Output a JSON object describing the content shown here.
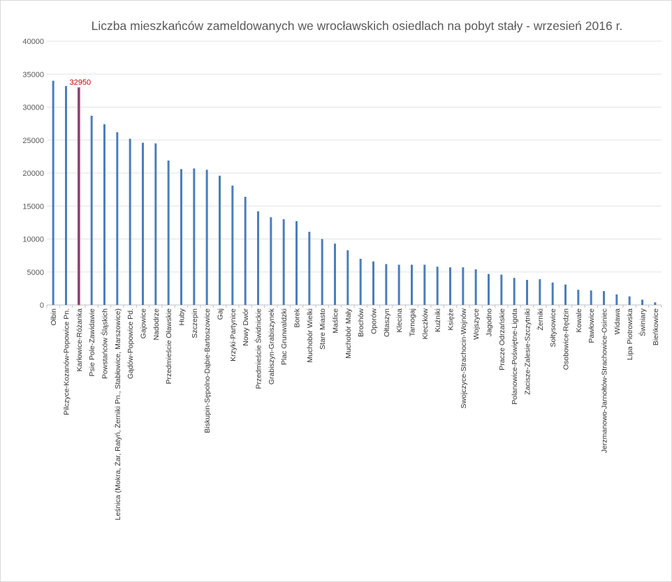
{
  "chart_data": {
    "type": "bar",
    "title": "Liczba mieszkańców zameldowanych we wrocławskich osiedlach na pobyt stały - wrzesień 2016 r.",
    "xlabel": "",
    "ylabel": "",
    "ylim": [
      0,
      40000
    ],
    "yticks": [
      "0",
      "5000",
      "10000",
      "15000",
      "20000",
      "25000",
      "30000",
      "35000",
      "40000"
    ],
    "grid": true,
    "bar_color": "#4a7ebb",
    "highlight_color": "#7b3f6e",
    "highlight_index": 2,
    "data_label": {
      "text": "32950",
      "color": "#c00000"
    },
    "categories": [
      "Ołbin",
      "Pilczyce-Kozanów-Popowice Pn.",
      "Karłowice-Różanka",
      "Psie Pole-Zawidawie",
      "Powstańców Śląskich",
      "Leśnica (Mokra, Żar, Ratyń, Żerniki Pn., Stabłowice, Marszowice)",
      "Gądów-Popowice Pd.",
      "Gajowice",
      "Nadodrze",
      "Przedmieście Oławskie",
      "Huby",
      "Szczepin",
      "Biskupin-Sępolno-Dąbie-Bartoszowice",
      "Gaj",
      "Krzyki-Partynice",
      "Nowy Dwór",
      "Przedmieście Świdnickie",
      "Grabiszyn-Grabiszynek",
      "Plac Grunwaldzki",
      "Borek",
      "Muchobór Wielki",
      "Stare Miasto",
      "Maślice",
      "Muchobór Mały",
      "Brochów",
      "Oporów",
      "Ołtaszyn",
      "Klecina",
      "Tarnogaj",
      "Kleczków",
      "Kuźniki",
      "Księże",
      "Swojczyce-Strachocin-Wojnów",
      "Wojszyce",
      "Jagodno",
      "Pracze Odrzańskie",
      "Polanowice-Poświętne-Ligota",
      "Zacisze-Zalesie-Szczytniki",
      "Żerniki",
      "Sołtysowice",
      "Osobowice-Rędzin",
      "Kowale",
      "Pawłowice",
      "Jerzmanowo-Jarnołtów-Strachowice-Osiniec",
      "Widawa",
      "Lipa Piotrowska",
      "Świniary",
      "Bieńkowice"
    ],
    "values": [
      34000,
      33200,
      32950,
      28700,
      27400,
      26200,
      25200,
      24600,
      24500,
      21900,
      20600,
      20700,
      20500,
      19600,
      18100,
      16400,
      14200,
      13300,
      13000,
      12700,
      11100,
      10000,
      9300,
      8300,
      7000,
      6600,
      6200,
      6100,
      6100,
      6100,
      5800,
      5700,
      5700,
      5400,
      4700,
      4600,
      4100,
      3800,
      3900,
      3400,
      3100,
      2300,
      2200,
      2100,
      1600,
      1300,
      800,
      400
    ]
  }
}
